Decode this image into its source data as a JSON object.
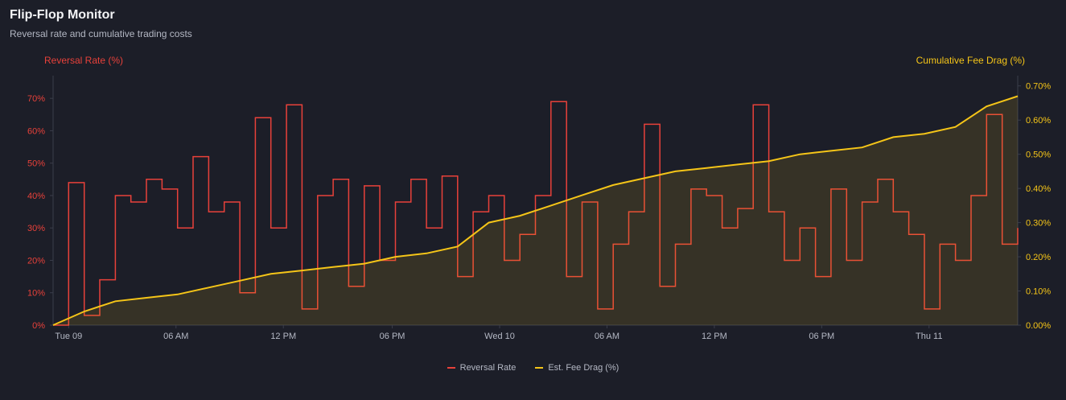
{
  "header": {
    "title": "Flip-Flop Monitor",
    "subtitle": "Reversal rate and cumulative trading costs"
  },
  "chart_data": {
    "type": "line",
    "title": "Flip-Flop Monitor",
    "subtitle": "Reversal rate and cumulative trading costs",
    "x_unit": "hours",
    "x_range": [
      0,
      62
    ],
    "x_ticks": [
      {
        "x": 1,
        "label": "Tue 09"
      },
      {
        "x": 7.9,
        "label": "06 AM"
      },
      {
        "x": 14.8,
        "label": "12 PM"
      },
      {
        "x": 21.8,
        "label": "06 PM"
      },
      {
        "x": 28.7,
        "label": "Wed 10"
      },
      {
        "x": 35.6,
        "label": "06 AM"
      },
      {
        "x": 42.5,
        "label": "12 PM"
      },
      {
        "x": 49.4,
        "label": "06 PM"
      },
      {
        "x": 56.3,
        "label": "Thu 11"
      }
    ],
    "y_left": {
      "label": "Reversal Rate (%)",
      "range": [
        0,
        77
      ],
      "ticks": [
        "0%",
        "10%",
        "20%",
        "30%",
        "40%",
        "50%",
        "60%",
        "70%"
      ],
      "tick_values": [
        0,
        10,
        20,
        30,
        40,
        50,
        60,
        70
      ]
    },
    "y_right": {
      "label": "Cumulative Fee Drag (%)",
      "range": [
        0,
        0.73
      ],
      "ticks": [
        "0.00%",
        "0.10%",
        "0.20%",
        "0.30%",
        "0.40%",
        "0.50%",
        "0.60%",
        "0.70%"
      ],
      "tick_values": [
        0,
        0.1,
        0.2,
        0.3,
        0.4,
        0.5,
        0.6,
        0.7
      ]
    },
    "series": [
      {
        "name": "Reversal Rate",
        "axis": "left",
        "color": "#e8413a",
        "x": [
          0,
          1,
          2,
          3,
          4,
          5,
          6,
          7,
          8,
          9,
          10,
          11,
          12,
          13,
          14,
          15,
          16,
          17,
          18,
          19,
          20,
          21,
          22,
          23,
          24,
          25,
          26,
          27,
          28,
          29,
          30,
          31,
          32,
          33,
          34,
          35,
          36,
          37,
          38,
          39,
          40,
          41,
          42,
          43,
          44,
          45,
          46,
          47,
          48,
          49,
          50,
          51,
          52,
          53,
          54,
          55,
          56,
          57,
          58,
          59,
          60,
          61,
          62
        ],
        "values": [
          0,
          44,
          3,
          14,
          40,
          38,
          45,
          42,
          30,
          52,
          35,
          38,
          10,
          64,
          30,
          68,
          5,
          40,
          45,
          12,
          43,
          20,
          38,
          45,
          30,
          46,
          15,
          35,
          40,
          20,
          28,
          40,
          69,
          15,
          38,
          5,
          25,
          35,
          62,
          12,
          25,
          42,
          40,
          30,
          36,
          68,
          35,
          20,
          30,
          15,
          42,
          20,
          38,
          45,
          35,
          28,
          5,
          25,
          20,
          40,
          65,
          25,
          30
        ],
        "fill": false
      },
      {
        "name": "Est. Fee Drag (%)",
        "axis": "right",
        "color": "#f5c518",
        "x": [
          0,
          2,
          4,
          6,
          8,
          10,
          12,
          14,
          16,
          18,
          20,
          22,
          24,
          26,
          28,
          30,
          32,
          34,
          36,
          38,
          40,
          42,
          44,
          46,
          48,
          50,
          52,
          54,
          56,
          58,
          60,
          62
        ],
        "values": [
          0,
          0.04,
          0.07,
          0.08,
          0.09,
          0.11,
          0.13,
          0.15,
          0.16,
          0.17,
          0.18,
          0.2,
          0.21,
          0.23,
          0.3,
          0.32,
          0.35,
          0.38,
          0.41,
          0.43,
          0.45,
          0.46,
          0.47,
          0.48,
          0.5,
          0.51,
          0.52,
          0.55,
          0.56,
          0.58,
          0.64,
          0.67
        ],
        "fill": true
      }
    ],
    "grid": false,
    "legend_position": "bottom-center"
  },
  "legend": {
    "items": [
      {
        "label": "Reversal Rate",
        "color": "#e8413a"
      },
      {
        "label": "Est. Fee Drag (%)",
        "color": "#f5c518"
      }
    ]
  }
}
